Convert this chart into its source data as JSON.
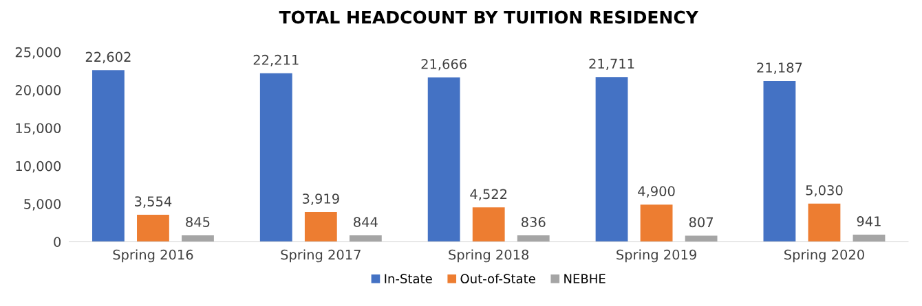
{
  "chart_data": {
    "type": "bar",
    "title": "TOTAL HEADCOUNT BY TUITION RESIDENCY",
    "categories": [
      "Spring 2016",
      "Spring 2017",
      "Spring 2018",
      "Spring 2019",
      "Spring 2020"
    ],
    "series": [
      {
        "name": "In-State",
        "color": "#4472c4",
        "values": [
          22602,
          22211,
          21666,
          21711,
          21187
        ],
        "value_labels": [
          "22,602",
          "22,211",
          "21,666",
          "21,711",
          "21,187"
        ]
      },
      {
        "name": "Out-of-State",
        "color": "#ed7d31",
        "values": [
          3554,
          3919,
          4522,
          4900,
          5030
        ],
        "value_labels": [
          "3,554",
          "3,919",
          "4,522",
          "4,900",
          "5,030"
        ]
      },
      {
        "name": "NEBHE",
        "color": "#a5a5a5",
        "values": [
          845,
          844,
          836,
          807,
          941
        ],
        "value_labels": [
          "845",
          "844",
          "836",
          "807",
          "941"
        ]
      }
    ],
    "ylim": [
      0,
      25000
    ],
    "yticks": [
      {
        "value": 0,
        "label": "0"
      },
      {
        "value": 5000,
        "label": "5,000"
      },
      {
        "value": 10000,
        "label": "10,000"
      },
      {
        "value": 15000,
        "label": "15,000"
      },
      {
        "value": 20000,
        "label": "20,000"
      },
      {
        "value": 25000,
        "label": "25,000"
      }
    ],
    "grid": false,
    "legend": "bottom"
  }
}
